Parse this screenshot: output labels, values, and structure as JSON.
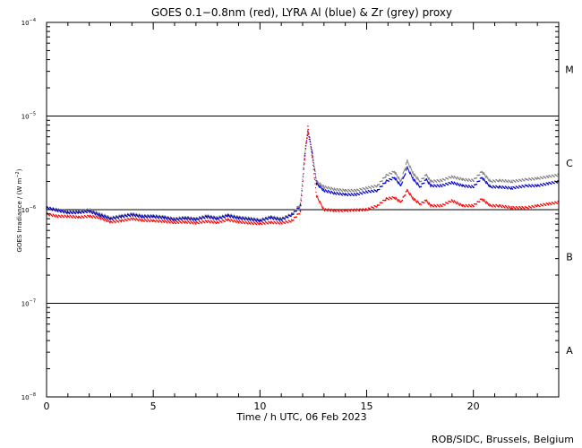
{
  "chart_data": {
    "type": "scatter",
    "title": "GOES 0.1−0.8nm (red), LYRA Al (blue) & Zr (grey) proxy",
    "xlabel": "Time / h UTC, 06 Feb 2023",
    "ylabel_main": "GOES Irradiance / (W m",
    "ylabel_sup": "−2",
    "ylabel_end": ")",
    "credit": "ROB/SIDC, Brussels, Belgium",
    "xlim": [
      0,
      24
    ],
    "ylim": [
      1e-08,
      0.0001
    ],
    "yscale": "log",
    "x_ticks": [
      {
        "value": 0,
        "label": "0"
      },
      {
        "value": 5,
        "label": "5"
      },
      {
        "value": 10,
        "label": "10"
      },
      {
        "value": 15,
        "label": "15"
      },
      {
        "value": 20,
        "label": "20"
      }
    ],
    "y_ticks": [
      {
        "value": 0.0001,
        "base": "10",
        "exp": "−4"
      },
      {
        "value": 1e-05,
        "base": "10",
        "exp": "−5"
      },
      {
        "value": 1e-06,
        "base": "10",
        "exp": "−6"
      },
      {
        "value": 1e-07,
        "base": "10",
        "exp": "−7"
      },
      {
        "value": 1e-08,
        "base": "10",
        "exp": "−8"
      }
    ],
    "flare_class_lines": [
      1e-05,
      1e-06,
      1e-07
    ],
    "flare_classes": [
      {
        "label": "M",
        "center": 3.16e-05
      },
      {
        "label": "C",
        "center": 3.16e-06
      },
      {
        "label": "B",
        "center": 3.16e-07
      },
      {
        "label": "A",
        "center": 3.16e-08
      }
    ],
    "grid": false,
    "series": [
      {
        "color": "#808080",
        "points": [
          [
            0,
            1.05e-06
          ],
          [
            0.5,
            1e-06
          ],
          [
            1,
            9.5e-07
          ],
          [
            1.5,
            9.5e-07
          ],
          [
            2,
            1e-06
          ],
          [
            2.5,
            9e-07
          ],
          [
            3,
            8.2e-07
          ],
          [
            3.5,
            8.6e-07
          ],
          [
            4,
            9e-07
          ],
          [
            4.5,
            8.6e-07
          ],
          [
            5,
            8.6e-07
          ],
          [
            5.5,
            8.4e-07
          ],
          [
            6,
            8e-07
          ],
          [
            6.5,
            8.3e-07
          ],
          [
            7,
            8e-07
          ],
          [
            7.5,
            8.6e-07
          ],
          [
            8,
            8.2e-07
          ],
          [
            8.5,
            8.8e-07
          ],
          [
            9,
            8.3e-07
          ],
          [
            9.5,
            8.1e-07
          ],
          [
            10,
            7.8e-07
          ],
          [
            10.5,
            8.4e-07
          ],
          [
            11,
            8e-07
          ],
          [
            11.5,
            9e-07
          ],
          [
            11.9,
            1.15e-06
          ],
          [
            12.1,
            4e-06
          ],
          [
            12.25,
            7.2e-06
          ],
          [
            12.45,
            4.2e-06
          ],
          [
            12.65,
            2e-06
          ],
          [
            13,
            1.75e-06
          ],
          [
            13.5,
            1.65e-06
          ],
          [
            14,
            1.6e-06
          ],
          [
            14.5,
            1.6e-06
          ],
          [
            15,
            1.7e-06
          ],
          [
            15.5,
            1.8e-06
          ],
          [
            15.9,
            2.3e-06
          ],
          [
            16.3,
            2.55e-06
          ],
          [
            16.6,
            2e-06
          ],
          [
            16.9,
            3.3e-06
          ],
          [
            17.2,
            2.4e-06
          ],
          [
            17.5,
            2e-06
          ],
          [
            17.8,
            2.35e-06
          ],
          [
            18,
            2e-06
          ],
          [
            18.5,
            2.05e-06
          ],
          [
            19,
            2.25e-06
          ],
          [
            19.5,
            2.1e-06
          ],
          [
            20,
            2.05e-06
          ],
          [
            20.4,
            2.55e-06
          ],
          [
            20.8,
            2e-06
          ],
          [
            21.2,
            2.05e-06
          ],
          [
            21.8,
            2e-06
          ],
          [
            22.5,
            2.1e-06
          ],
          [
            23,
            2.15e-06
          ],
          [
            23.5,
            2.25e-06
          ],
          [
            24,
            2.35e-06
          ]
        ]
      },
      {
        "color": "#0000cc",
        "points": [
          [
            0,
            1.05e-06
          ],
          [
            0.5,
            9.8e-07
          ],
          [
            1,
            9.3e-07
          ],
          [
            1.5,
            9.3e-07
          ],
          [
            2,
            9.6e-07
          ],
          [
            2.5,
            8.7e-07
          ],
          [
            3,
            8e-07
          ],
          [
            3.5,
            8.4e-07
          ],
          [
            4,
            8.8e-07
          ],
          [
            4.5,
            8.4e-07
          ],
          [
            5,
            8.4e-07
          ],
          [
            5.5,
            8.2e-07
          ],
          [
            6,
            7.8e-07
          ],
          [
            6.5,
            8.1e-07
          ],
          [
            7,
            7.8e-07
          ],
          [
            7.5,
            8.4e-07
          ],
          [
            8,
            8e-07
          ],
          [
            8.5,
            8.6e-07
          ],
          [
            9,
            8.1e-07
          ],
          [
            9.5,
            7.9e-07
          ],
          [
            10,
            7.6e-07
          ],
          [
            10.5,
            8.2e-07
          ],
          [
            11,
            7.8e-07
          ],
          [
            11.5,
            8.8e-07
          ],
          [
            11.9,
            1.1e-06
          ],
          [
            12.1,
            3.8e-06
          ],
          [
            12.25,
            6.8e-06
          ],
          [
            12.45,
            4e-06
          ],
          [
            12.65,
            1.9e-06
          ],
          [
            13,
            1.6e-06
          ],
          [
            13.5,
            1.5e-06
          ],
          [
            14,
            1.45e-06
          ],
          [
            14.5,
            1.45e-06
          ],
          [
            15,
            1.55e-06
          ],
          [
            15.5,
            1.6e-06
          ],
          [
            15.9,
            2e-06
          ],
          [
            16.3,
            2.2e-06
          ],
          [
            16.6,
            1.8e-06
          ],
          [
            16.9,
            2.8e-06
          ],
          [
            17.2,
            2.1e-06
          ],
          [
            17.5,
            1.75e-06
          ],
          [
            17.8,
            2.1e-06
          ],
          [
            18,
            1.8e-06
          ],
          [
            18.5,
            1.8e-06
          ],
          [
            19,
            1.95e-06
          ],
          [
            19.5,
            1.8e-06
          ],
          [
            20,
            1.75e-06
          ],
          [
            20.4,
            2.2e-06
          ],
          [
            20.8,
            1.75e-06
          ],
          [
            21.2,
            1.75e-06
          ],
          [
            21.8,
            1.7e-06
          ],
          [
            22.5,
            1.8e-06
          ],
          [
            23,
            1.8e-06
          ],
          [
            23.5,
            1.9e-06
          ],
          [
            24,
            2e-06
          ]
        ]
      },
      {
        "color": "#ff0000",
        "points": [
          [
            0,
            9e-07
          ],
          [
            0.5,
            8.5e-07
          ],
          [
            1,
            8.5e-07
          ],
          [
            1.5,
            8.3e-07
          ],
          [
            2,
            8.5e-07
          ],
          [
            2.5,
            8.2e-07
          ],
          [
            3,
            7.4e-07
          ],
          [
            3.5,
            7.6e-07
          ],
          [
            4,
            8e-07
          ],
          [
            4.5,
            7.7e-07
          ],
          [
            5,
            7.6e-07
          ],
          [
            5.5,
            7.5e-07
          ],
          [
            6,
            7.3e-07
          ],
          [
            6.5,
            7.4e-07
          ],
          [
            7,
            7.2e-07
          ],
          [
            7.5,
            7.5e-07
          ],
          [
            8,
            7.3e-07
          ],
          [
            8.5,
            7.8e-07
          ],
          [
            9,
            7.4e-07
          ],
          [
            9.5,
            7.2e-07
          ],
          [
            10,
            7.1e-07
          ],
          [
            10.5,
            7.3e-07
          ],
          [
            11,
            7.2e-07
          ],
          [
            11.5,
            7.6e-07
          ],
          [
            11.9,
            9.5e-07
          ],
          [
            12.1,
            3.5e-06
          ],
          [
            12.25,
            7.8e-06
          ],
          [
            12.45,
            3.6e-06
          ],
          [
            12.65,
            1.4e-06
          ],
          [
            13,
            1e-06
          ],
          [
            13.5,
            9.8e-07
          ],
          [
            14,
            9.8e-07
          ],
          [
            14.5,
            9.9e-07
          ],
          [
            15,
            1e-06
          ],
          [
            15.5,
            1.1e-06
          ],
          [
            15.9,
            1.3e-06
          ],
          [
            16.3,
            1.35e-06
          ],
          [
            16.6,
            1.2e-06
          ],
          [
            16.9,
            1.6e-06
          ],
          [
            17.2,
            1.3e-06
          ],
          [
            17.5,
            1.15e-06
          ],
          [
            17.8,
            1.25e-06
          ],
          [
            18,
            1.1e-06
          ],
          [
            18.5,
            1.1e-06
          ],
          [
            19,
            1.25e-06
          ],
          [
            19.5,
            1.1e-06
          ],
          [
            20,
            1.1e-06
          ],
          [
            20.4,
            1.3e-06
          ],
          [
            20.8,
            1.1e-06
          ],
          [
            21.2,
            1.1e-06
          ],
          [
            21.8,
            1.05e-06
          ],
          [
            22.5,
            1.05e-06
          ],
          [
            23,
            1.1e-06
          ],
          [
            23.5,
            1.15e-06
          ],
          [
            24,
            1.2e-06
          ]
        ]
      }
    ]
  }
}
